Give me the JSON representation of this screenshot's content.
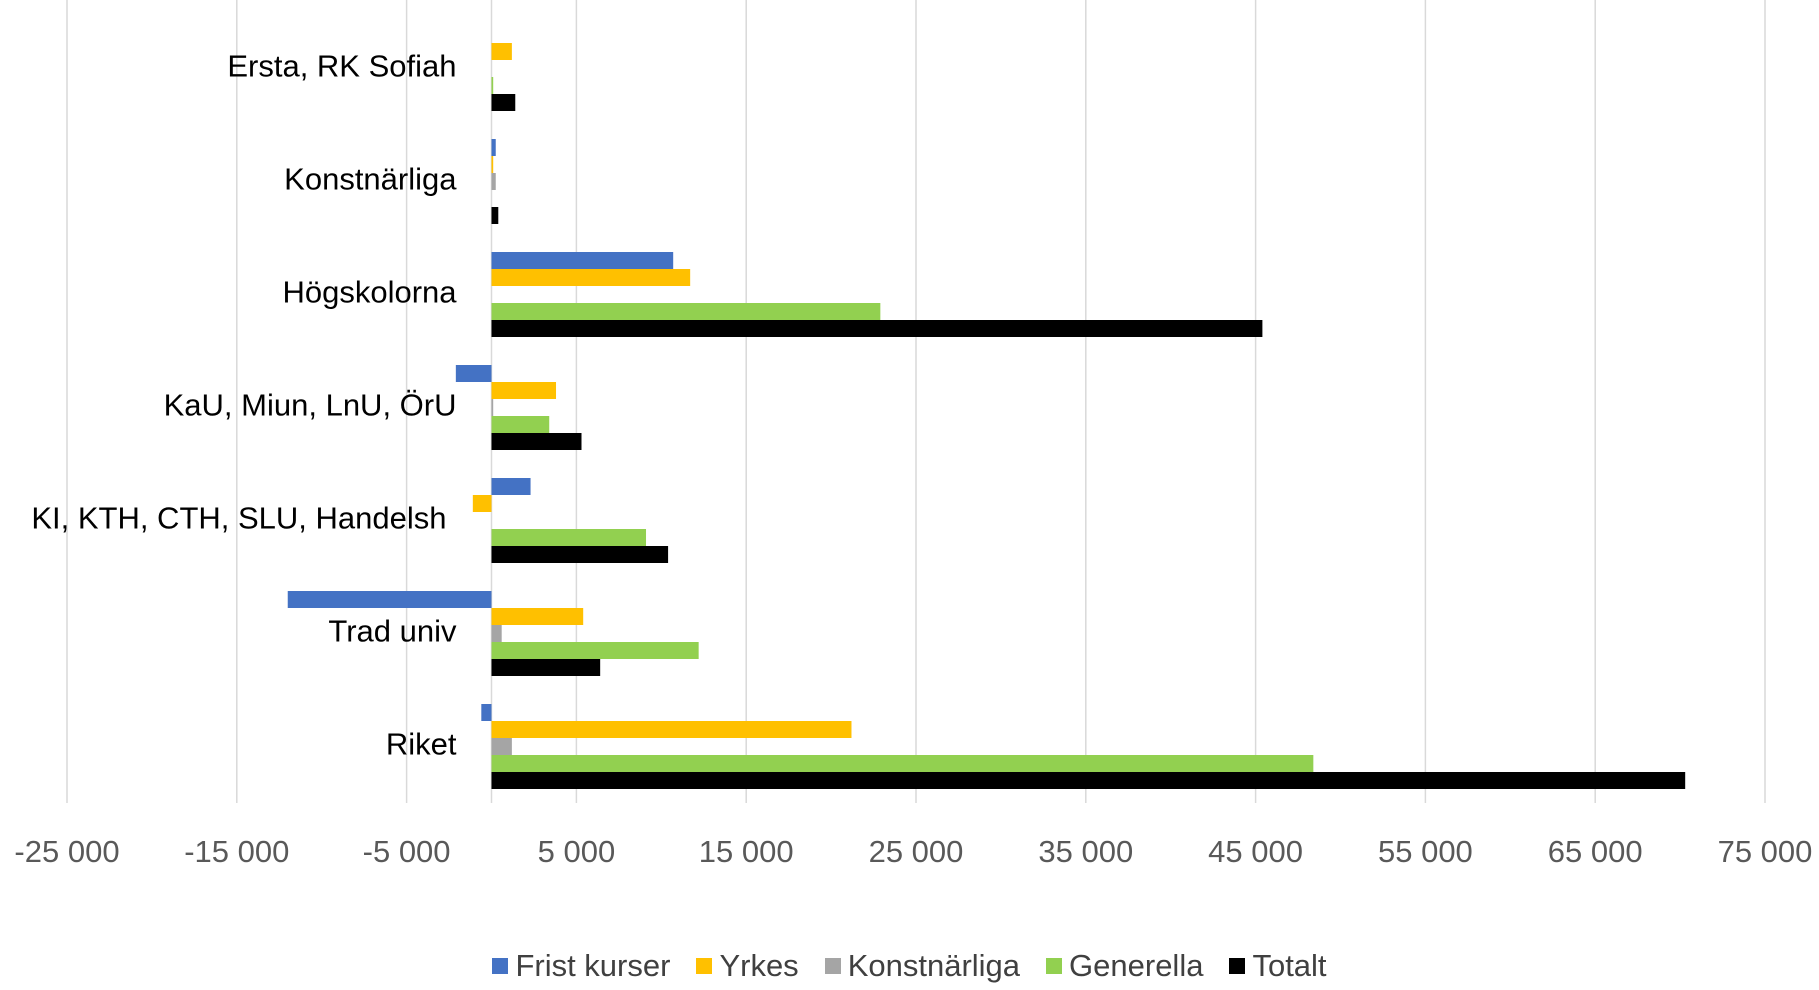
{
  "chart_data": {
    "type": "bar",
    "orientation": "horizontal",
    "title": "",
    "categories": [
      "Ersta, RK Sofiah",
      "Konstnärliga",
      "Högskolorna",
      "KaU, Miun, LnU, ÖrU",
      "KI, KTH, CTH, SLU, Handelsh",
      "Trad univ",
      "Riket"
    ],
    "series": [
      {
        "name": "Frist kurser",
        "color": "#4472C4",
        "values": [
          0,
          250,
          10700,
          -2100,
          2300,
          -12000,
          -600
        ]
      },
      {
        "name": "Yrkes",
        "color": "#FFC000",
        "values": [
          1200,
          100,
          11700,
          3800,
          -1100,
          5400,
          21200
        ]
      },
      {
        "name": "Konstnärliga",
        "color": "#A5A5A5",
        "values": [
          0,
          250,
          0,
          100,
          0,
          600,
          1200
        ]
      },
      {
        "name": "Generella",
        "color": "#92D050",
        "values": [
          100,
          0,
          22900,
          3400,
          9100,
          12200,
          48400
        ]
      },
      {
        "name": "Totalt",
        "color": "#000000",
        "values": [
          1400,
          400,
          45400,
          5300,
          10400,
          6400,
          70300
        ]
      }
    ],
    "xlim": [
      -25000,
      75000
    ],
    "xticks": [
      -25000,
      -15000,
      -5000,
      5000,
      15000,
      25000,
      35000,
      45000,
      55000,
      65000,
      75000
    ],
    "xtick_labels": [
      "-25 000",
      "-15 000",
      "-5 000",
      "5 000",
      "15 000",
      "25 000",
      "35 000",
      "45 000",
      "55 000",
      "65 000",
      "75 000"
    ],
    "grid": true,
    "legend_position": "bottom",
    "xlabel": "",
    "ylabel": ""
  }
}
